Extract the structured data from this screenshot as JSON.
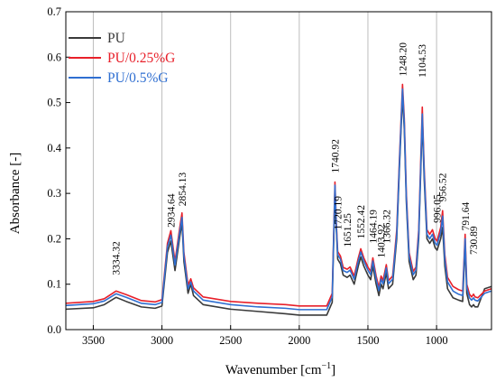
{
  "chart_data": {
    "type": "line",
    "xlabel": "Wavenumber [cm",
    "xlabel_sup": "−1",
    "xlabel_end": "]",
    "ylabel": "Absorbance [-]",
    "xlim": [
      3700,
      600
    ],
    "ylim": [
      0,
      0.7
    ],
    "x_ticks": [
      3500,
      3000,
      2500,
      2000,
      1500,
      1000
    ],
    "x_tick_labels": [
      "3500",
      "3000",
      "2500",
      "2000",
      "1500",
      "1000"
    ],
    "y_ticks": [
      0.0,
      0.1,
      0.2,
      0.3,
      0.4,
      0.5,
      0.6,
      0.7
    ],
    "y_tick_labels": [
      "0.0",
      "0.1",
      "0.2",
      "0.3",
      "0.4",
      "0.5",
      "0.6",
      "0.7"
    ],
    "x_gridlines": [
      3500,
      3000,
      2500,
      2000,
      1500,
      1000
    ],
    "legend_position": "top-left",
    "series": [
      {
        "name": "PU",
        "color": "#3a3a3a",
        "points": [
          [
            3700,
            0.045
          ],
          [
            3500,
            0.048
          ],
          [
            3420,
            0.055
          ],
          [
            3334,
            0.071
          ],
          [
            3260,
            0.062
          ],
          [
            3150,
            0.05
          ],
          [
            3050,
            0.047
          ],
          [
            3000,
            0.052
          ],
          [
            2960,
            0.17
          ],
          [
            2935,
            0.195
          ],
          [
            2905,
            0.13
          ],
          [
            2870,
            0.205
          ],
          [
            2854,
            0.235
          ],
          [
            2840,
            0.15
          ],
          [
            2810,
            0.08
          ],
          [
            2790,
            0.1
          ],
          [
            2770,
            0.075
          ],
          [
            2700,
            0.055
          ],
          [
            2500,
            0.045
          ],
          [
            2300,
            0.04
          ],
          [
            2100,
            0.035
          ],
          [
            2000,
            0.032
          ],
          [
            1800,
            0.032
          ],
          [
            1760,
            0.06
          ],
          [
            1740,
            0.31
          ],
          [
            1730,
            0.22
          ],
          [
            1720,
            0.155
          ],
          [
            1700,
            0.145
          ],
          [
            1680,
            0.12
          ],
          [
            1651,
            0.115
          ],
          [
            1630,
            0.12
          ],
          [
            1600,
            0.1
          ],
          [
            1570,
            0.14
          ],
          [
            1552,
            0.16
          ],
          [
            1530,
            0.14
          ],
          [
            1500,
            0.12
          ],
          [
            1480,
            0.11
          ],
          [
            1464,
            0.14
          ],
          [
            1440,
            0.1
          ],
          [
            1420,
            0.075
          ],
          [
            1404,
            0.1
          ],
          [
            1390,
            0.09
          ],
          [
            1366,
            0.125
          ],
          [
            1350,
            0.09
          ],
          [
            1320,
            0.1
          ],
          [
            1290,
            0.2
          ],
          [
            1270,
            0.36
          ],
          [
            1248,
            0.515
          ],
          [
            1235,
            0.44
          ],
          [
            1220,
            0.28
          ],
          [
            1200,
            0.15
          ],
          [
            1170,
            0.11
          ],
          [
            1150,
            0.12
          ],
          [
            1130,
            0.2
          ],
          [
            1104,
            0.46
          ],
          [
            1090,
            0.33
          ],
          [
            1070,
            0.2
          ],
          [
            1050,
            0.19
          ],
          [
            1030,
            0.2
          ],
          [
            1010,
            0.18
          ],
          [
            996,
            0.175
          ],
          [
            970,
            0.2
          ],
          [
            956,
            0.225
          ],
          [
            940,
            0.14
          ],
          [
            920,
            0.09
          ],
          [
            880,
            0.07
          ],
          [
            840,
            0.065
          ],
          [
            810,
            0.062
          ],
          [
            792,
            0.185
          ],
          [
            780,
            0.08
          ],
          [
            760,
            0.055
          ],
          [
            745,
            0.05
          ],
          [
            731,
            0.055
          ],
          [
            720,
            0.05
          ],
          [
            700,
            0.05
          ],
          [
            650,
            0.09
          ],
          [
            600,
            0.095
          ]
        ]
      },
      {
        "name": "PU/0.25%G",
        "color": "#e8202a",
        "points": [
          [
            3700,
            0.058
          ],
          [
            3500,
            0.062
          ],
          [
            3420,
            0.068
          ],
          [
            3334,
            0.085
          ],
          [
            3260,
            0.077
          ],
          [
            3150,
            0.064
          ],
          [
            3050,
            0.061
          ],
          [
            3000,
            0.066
          ],
          [
            2960,
            0.19
          ],
          [
            2935,
            0.218
          ],
          [
            2905,
            0.15
          ],
          [
            2870,
            0.225
          ],
          [
            2854,
            0.257
          ],
          [
            2840,
            0.17
          ],
          [
            2810,
            0.098
          ],
          [
            2790,
            0.112
          ],
          [
            2770,
            0.092
          ],
          [
            2700,
            0.072
          ],
          [
            2500,
            0.062
          ],
          [
            2300,
            0.058
          ],
          [
            2100,
            0.055
          ],
          [
            2000,
            0.052
          ],
          [
            1800,
            0.052
          ],
          [
            1760,
            0.08
          ],
          [
            1740,
            0.325
          ],
          [
            1730,
            0.235
          ],
          [
            1720,
            0.172
          ],
          [
            1700,
            0.162
          ],
          [
            1680,
            0.137
          ],
          [
            1651,
            0.133
          ],
          [
            1630,
            0.138
          ],
          [
            1600,
            0.118
          ],
          [
            1570,
            0.158
          ],
          [
            1552,
            0.178
          ],
          [
            1530,
            0.158
          ],
          [
            1500,
            0.138
          ],
          [
            1480,
            0.128
          ],
          [
            1464,
            0.158
          ],
          [
            1440,
            0.118
          ],
          [
            1420,
            0.093
          ],
          [
            1404,
            0.118
          ],
          [
            1390,
            0.108
          ],
          [
            1366,
            0.143
          ],
          [
            1350,
            0.108
          ],
          [
            1320,
            0.118
          ],
          [
            1290,
            0.22
          ],
          [
            1270,
            0.38
          ],
          [
            1248,
            0.54
          ],
          [
            1235,
            0.465
          ],
          [
            1220,
            0.3
          ],
          [
            1200,
            0.17
          ],
          [
            1170,
            0.128
          ],
          [
            1150,
            0.138
          ],
          [
            1130,
            0.22
          ],
          [
            1104,
            0.49
          ],
          [
            1090,
            0.355
          ],
          [
            1070,
            0.22
          ],
          [
            1050,
            0.21
          ],
          [
            1030,
            0.22
          ],
          [
            1010,
            0.2
          ],
          [
            996,
            0.195
          ],
          [
            970,
            0.225
          ],
          [
            956,
            0.262
          ],
          [
            940,
            0.165
          ],
          [
            920,
            0.115
          ],
          [
            880,
            0.095
          ],
          [
            840,
            0.088
          ],
          [
            810,
            0.085
          ],
          [
            792,
            0.21
          ],
          [
            780,
            0.1
          ],
          [
            760,
            0.078
          ],
          [
            745,
            0.072
          ],
          [
            731,
            0.078
          ],
          [
            720,
            0.072
          ],
          [
            700,
            0.07
          ],
          [
            650,
            0.085
          ],
          [
            600,
            0.09
          ]
        ]
      },
      {
        "name": "PU/0.5%G",
        "color": "#2f6fd1",
        "points": [
          [
            3700,
            0.053
          ],
          [
            3500,
            0.057
          ],
          [
            3420,
            0.063
          ],
          [
            3334,
            0.079
          ],
          [
            3260,
            0.071
          ],
          [
            3150,
            0.058
          ],
          [
            3050,
            0.055
          ],
          [
            3000,
            0.06
          ],
          [
            2960,
            0.182
          ],
          [
            2935,
            0.208
          ],
          [
            2905,
            0.142
          ],
          [
            2870,
            0.216
          ],
          [
            2854,
            0.247
          ],
          [
            2840,
            0.162
          ],
          [
            2810,
            0.09
          ],
          [
            2790,
            0.105
          ],
          [
            2770,
            0.085
          ],
          [
            2700,
            0.065
          ],
          [
            2500,
            0.055
          ],
          [
            2300,
            0.05
          ],
          [
            2100,
            0.047
          ],
          [
            2000,
            0.044
          ],
          [
            1800,
            0.044
          ],
          [
            1760,
            0.072
          ],
          [
            1740,
            0.318
          ],
          [
            1730,
            0.228
          ],
          [
            1720,
            0.165
          ],
          [
            1700,
            0.155
          ],
          [
            1680,
            0.13
          ],
          [
            1651,
            0.126
          ],
          [
            1630,
            0.131
          ],
          [
            1600,
            0.111
          ],
          [
            1570,
            0.151
          ],
          [
            1552,
            0.171
          ],
          [
            1530,
            0.151
          ],
          [
            1500,
            0.131
          ],
          [
            1480,
            0.121
          ],
          [
            1464,
            0.151
          ],
          [
            1440,
            0.111
          ],
          [
            1420,
            0.086
          ],
          [
            1404,
            0.111
          ],
          [
            1390,
            0.101
          ],
          [
            1366,
            0.136
          ],
          [
            1350,
            0.101
          ],
          [
            1320,
            0.111
          ],
          [
            1290,
            0.21
          ],
          [
            1270,
            0.37
          ],
          [
            1248,
            0.53
          ],
          [
            1235,
            0.455
          ],
          [
            1220,
            0.29
          ],
          [
            1200,
            0.162
          ],
          [
            1170,
            0.121
          ],
          [
            1150,
            0.131
          ],
          [
            1130,
            0.21
          ],
          [
            1104,
            0.475
          ],
          [
            1090,
            0.345
          ],
          [
            1070,
            0.21
          ],
          [
            1050,
            0.2
          ],
          [
            1030,
            0.21
          ],
          [
            1010,
            0.19
          ],
          [
            996,
            0.186
          ],
          [
            970,
            0.215
          ],
          [
            956,
            0.25
          ],
          [
            940,
            0.155
          ],
          [
            920,
            0.105
          ],
          [
            880,
            0.085
          ],
          [
            840,
            0.078
          ],
          [
            810,
            0.075
          ],
          [
            792,
            0.2
          ],
          [
            780,
            0.092
          ],
          [
            760,
            0.07
          ],
          [
            745,
            0.065
          ],
          [
            731,
            0.07
          ],
          [
            720,
            0.065
          ],
          [
            700,
            0.063
          ],
          [
            650,
            0.08
          ],
          [
            600,
            0.085
          ]
        ]
      }
    ],
    "peak_annotations": [
      {
        "label": "3334.32",
        "x": 3334.32,
        "y": 0.12
      },
      {
        "label": "2934.64",
        "x": 2934.64,
        "y": 0.225
      },
      {
        "label": "2854.13",
        "x": 2854.13,
        "y": 0.272
      },
      {
        "label": "1740.92",
        "x": 1740.92,
        "y": 0.345
      },
      {
        "label": "1720.19",
        "x": 1720.19,
        "y": 0.22
      },
      {
        "label": "1651.25",
        "x": 1651.25,
        "y": 0.182
      },
      {
        "label": "1552.42",
        "x": 1552.42,
        "y": 0.2
      },
      {
        "label": "1464.19",
        "x": 1464.19,
        "y": 0.19
      },
      {
        "label": "1403.92",
        "x": 1403.92,
        "y": 0.158
      },
      {
        "label": "1366.32",
        "x": 1366.32,
        "y": 0.19
      },
      {
        "label": "1248.20",
        "x": 1248.2,
        "y": 0.558
      },
      {
        "label": "1104.53",
        "x": 1104.53,
        "y": 0.555
      },
      {
        "label": "996.05",
        "x": 996.05,
        "y": 0.235
      },
      {
        "label": "956.52",
        "x": 956.52,
        "y": 0.282
      },
      {
        "label": "791.64",
        "x": 791.64,
        "y": 0.218
      },
      {
        "label": "730.89",
        "x": 730.89,
        "y": 0.165
      }
    ]
  }
}
